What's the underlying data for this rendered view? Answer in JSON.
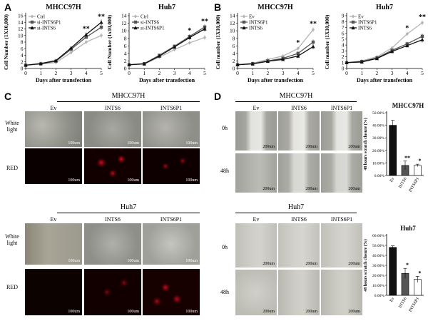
{
  "panels": {
    "A": "A",
    "B": "B",
    "C": "C",
    "D": "D"
  },
  "section_titles": {
    "C_top": "MHCC97H",
    "C_bottom": "Huh7",
    "D_top": "MHCC97H",
    "D_bottom": "Huh7"
  },
  "C_columns": [
    "Ev",
    "INTS6",
    "INTS6P1"
  ],
  "C_rows": [
    "White light",
    "RED"
  ],
  "C_scale": "100um",
  "D_columns": [
    "Ev",
    "INTS6",
    "INTS6P1"
  ],
  "D_rows": [
    "0h",
    "48h"
  ],
  "D_scale": "200um",
  "colors": {
    "black": "#111111",
    "dark_gray": "#555555",
    "light_gray": "#bbbbbb"
  },
  "chart_data": [
    {
      "id": "A_MHCC97H",
      "type": "line",
      "title": "MHCC97H",
      "xlabel": "Days after transfection",
      "ylabel": "Cell Number (1X10,000)",
      "x": [
        0,
        1,
        2,
        3,
        4,
        5
      ],
      "ylim": [
        0,
        16
      ],
      "yticks": [
        0,
        2,
        4,
        6,
        8,
        10,
        12,
        14,
        16
      ],
      "legend": [
        "Ctrl",
        "si-INTS6P1",
        "si-INTS6"
      ],
      "series": [
        {
          "name": "Ctrl",
          "values": [
            1,
            1.3,
            1.8,
            4.8,
            8.0,
            10.0
          ]
        },
        {
          "name": "si-INTS6P1",
          "values": [
            1,
            1.4,
            2.2,
            5.8,
            9.5,
            12.5
          ]
        },
        {
          "name": "si-INTS6",
          "values": [
            1,
            1.5,
            2.4,
            6.2,
            10.3,
            14.0
          ]
        }
      ],
      "annotations": [
        {
          "x": 4,
          "text": "**"
        },
        {
          "x": 5,
          "text": "**"
        }
      ]
    },
    {
      "id": "A_Huh7",
      "type": "line",
      "title": "Huh7",
      "xlabel": "Days after transfection",
      "ylabel": "Cell Number (1x10,000)",
      "x": [
        0,
        1,
        2,
        3,
        4,
        5
      ],
      "ylim": [
        0,
        14
      ],
      "yticks": [
        0,
        2,
        4,
        6,
        8,
        10,
        12,
        14
      ],
      "legend": [
        "Ctrl",
        "si-INTS6",
        "si-INTS6P1"
      ],
      "series": [
        {
          "name": "Ctrl",
          "values": [
            1,
            1.2,
            3.0,
            5.0,
            6.8,
            8.2
          ]
        },
        {
          "name": "si-INTS6",
          "values": [
            1,
            1.3,
            3.5,
            5.9,
            8.5,
            11.0
          ]
        },
        {
          "name": "si-INTS6P1",
          "values": [
            1,
            1.2,
            3.3,
            5.7,
            8.2,
            10.5
          ]
        }
      ],
      "annotations": [
        {
          "x": 4,
          "text": "*"
        },
        {
          "x": 5,
          "text": "**"
        }
      ]
    },
    {
      "id": "B_MHCC97H",
      "type": "line",
      "title": "MHCC97H",
      "xlabel": "Days after transfection",
      "ylabel": "Cell number (1X10,000)",
      "x": [
        0,
        1,
        2,
        3,
        4,
        5
      ],
      "ylim": [
        0,
        14
      ],
      "yticks": [
        0,
        2,
        4,
        6,
        8,
        10,
        12,
        14
      ],
      "legend": [
        "Ev",
        "INTS6P1",
        "INTS6"
      ],
      "series": [
        {
          "name": "Ev",
          "values": [
            1,
            1.4,
            2.4,
            3.3,
            5.3,
            10.3
          ]
        },
        {
          "name": "INTS6P1",
          "values": [
            1,
            1.3,
            2.0,
            2.7,
            4.0,
            7.0
          ]
        },
        {
          "name": "INTS6",
          "values": [
            1,
            1.2,
            1.9,
            2.4,
            3.3,
            5.8
          ]
        }
      ],
      "annotations": [
        {
          "x": 4,
          "text": "*"
        },
        {
          "x": 5,
          "text": "**"
        }
      ]
    },
    {
      "id": "B_Huh7",
      "type": "line",
      "title": "Huh7",
      "xlabel": "Days after transfection",
      "ylabel": "Cell number (1X10,000)",
      "x": [
        0,
        1,
        2,
        3,
        4,
        5
      ],
      "ylim": [
        0,
        9
      ],
      "yticks": [
        0,
        1,
        2,
        3,
        4,
        5,
        6,
        7,
        8,
        9
      ],
      "legend": [
        "Ev",
        "INTS6P1",
        "INTS6"
      ],
      "series": [
        {
          "name": "Ev",
          "values": [
            1,
            1.3,
            2.0,
            3.5,
            5.9,
            7.8
          ]
        },
        {
          "name": "INTS6P1",
          "values": [
            1,
            1.2,
            1.8,
            3.1,
            4.2,
            5.5
          ]
        },
        {
          "name": "INTS6",
          "values": [
            1,
            1.1,
            1.7,
            2.9,
            3.9,
            4.9
          ]
        }
      ],
      "annotations": [
        {
          "x": 4,
          "text": "*"
        },
        {
          "x": 5,
          "text": "**"
        }
      ]
    },
    {
      "id": "D_MHCC97H",
      "type": "bar",
      "title": "MHCC97H",
      "ylabel": "48 hours scratch closure (%)",
      "categories": [
        "Ev",
        "INTS6",
        "INTS6P1"
      ],
      "values": [
        40,
        8,
        8
      ],
      "errors": [
        4,
        3.5,
        1
      ],
      "colors": [
        "#111111",
        "#555555",
        "#ffffff"
      ],
      "ylim": [
        0,
        50
      ],
      "yticks": [
        "0.00%",
        "10.00%",
        "20.00%",
        "30.00%",
        "40.00%",
        "50.00%"
      ],
      "annotations": [
        "",
        "**",
        "*"
      ]
    },
    {
      "id": "D_Huh7",
      "type": "bar",
      "title": "Huh7",
      "ylabel": "48 hours scratch closure (%)",
      "categories": [
        "Ev",
        "INTS6",
        "INTS6P1"
      ],
      "values": [
        48,
        22,
        16
      ],
      "errors": [
        1.5,
        5,
        3
      ],
      "colors": [
        "#111111",
        "#555555",
        "#ffffff"
      ],
      "ylim": [
        0,
        60
      ],
      "yticks": [
        "0.00%",
        "10.00%",
        "20.00%",
        "30.00%",
        "40.00%",
        "50.00%",
        "60.00%"
      ],
      "annotations": [
        "",
        "*",
        "*"
      ]
    }
  ]
}
